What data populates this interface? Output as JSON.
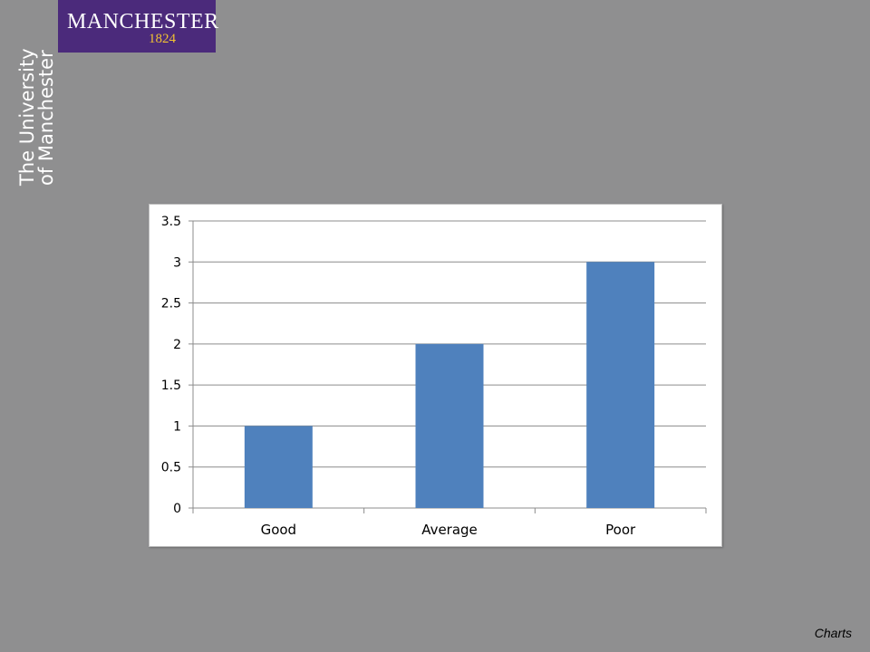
{
  "logo": {
    "name": "MANCHESTER",
    "year": "1824",
    "vertical_line1": "The University",
    "vertical_line2": "of Manchester",
    "box_color": "#4b2a7b",
    "year_color": "#f1c232"
  },
  "footer": {
    "label": "Charts"
  },
  "chart_data": {
    "type": "bar",
    "categories": [
      "Good",
      "Average",
      "Poor"
    ],
    "values": [
      1,
      2,
      3
    ],
    "ylim": [
      0,
      3.5
    ],
    "yticks": [
      "0",
      "0.5",
      "1",
      "1.5",
      "2",
      "2.5",
      "3",
      "3.5"
    ],
    "grid": true,
    "bar_color": "#4f81bd",
    "title": "",
    "xlabel": "",
    "ylabel": ""
  }
}
